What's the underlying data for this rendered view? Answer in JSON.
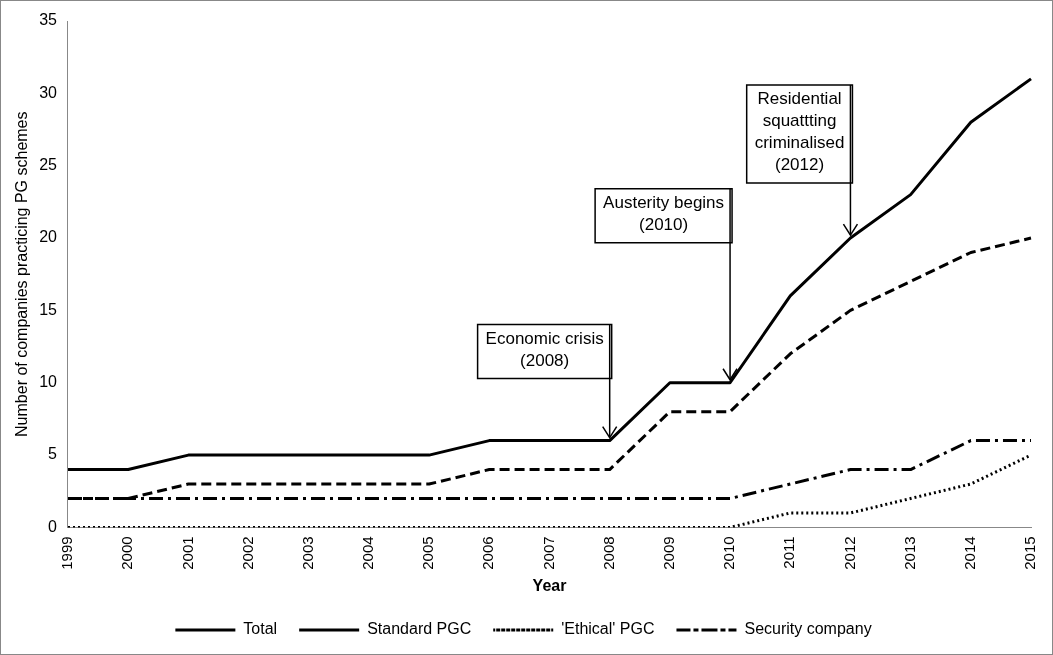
{
  "chart_data": {
    "type": "line",
    "xlabel": "Year",
    "ylabel": "Number of companies practicing PG schemes",
    "categories": [
      "1999",
      "2000",
      "2001",
      "2002",
      "2003",
      "2004",
      "2005",
      "2006",
      "2007",
      "2008",
      "2009",
      "2010",
      "2011",
      "2012",
      "2013",
      "2014",
      "2015"
    ],
    "series": [
      {
        "name": "Total",
        "color": "#000000",
        "line_style": "solid",
        "values": [
          4,
          4,
          5,
          5,
          5,
          5,
          5,
          6,
          6,
          6,
          10,
          10,
          16,
          20,
          23,
          28,
          31
        ]
      },
      {
        "name": "Standard PGC",
        "color": "#000000",
        "line_style": "dashed",
        "values": [
          2,
          2,
          3,
          3,
          3,
          3,
          3,
          4,
          4,
          4,
          8,
          8,
          12,
          15,
          17,
          19,
          20
        ]
      },
      {
        "name": "'Ethical' PGC",
        "color": "#000000",
        "line_style": "dotted",
        "values": [
          0,
          0,
          0,
          0,
          0,
          0,
          0,
          0,
          0,
          0,
          0,
          0,
          1,
          1,
          2,
          3,
          5
        ]
      },
      {
        "name": "Security company",
        "color": "#000000",
        "line_style": "dashdot",
        "values": [
          2,
          2,
          2,
          2,
          2,
          2,
          2,
          2,
          2,
          2,
          2,
          2,
          3,
          4,
          4,
          6,
          6
        ]
      }
    ],
    "ylim": [
      0,
      35
    ],
    "yticks": [
      0,
      5,
      10,
      15,
      20,
      25,
      30,
      35
    ],
    "grid": false,
    "legend": "bottom",
    "marker": "none",
    "annotations": [
      {
        "text": "Economic crisis\n(2008)",
        "x": "2008",
        "y": 6
      },
      {
        "text": "Austerity begins\n(2010)",
        "x": "2010",
        "y": 10
      },
      {
        "text": "Residential\nsquattting\ncriminalised\n(2012)",
        "x": "2012",
        "y": 20
      }
    ]
  }
}
